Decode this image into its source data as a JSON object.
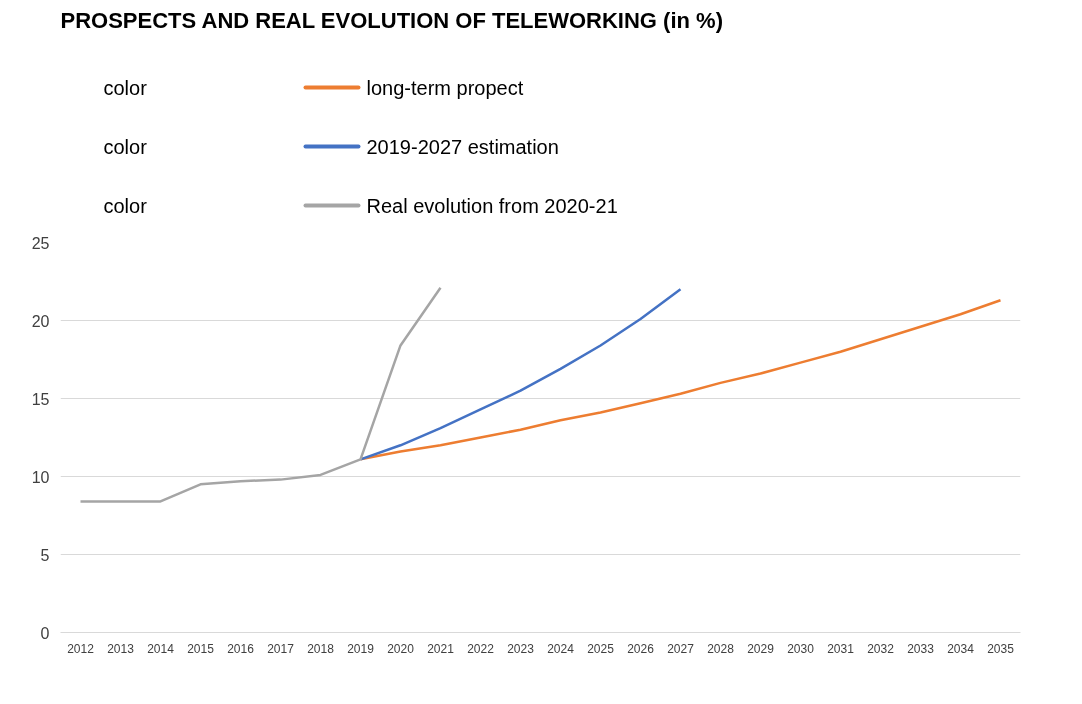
{
  "chart_data": {
    "type": "line",
    "title": "PROSPECTS AND REAL EVOLUTION OF TELEWORKING (in %)",
    "categories": [
      "2012",
      "2013",
      "2014",
      "2015",
      "2016",
      "2017",
      "2018",
      "2019",
      "2020",
      "2021",
      "2022",
      "2023",
      "2024",
      "2025",
      "2026",
      "2027",
      "2028",
      "2029",
      "2030",
      "2031",
      "2032",
      "2033",
      "2034",
      "2035"
    ],
    "series": [
      {
        "name": "long-term propect",
        "color": "#ed7d31",
        "values": [
          null,
          null,
          null,
          null,
          null,
          null,
          null,
          11.1,
          11.6,
          12.0,
          12.5,
          13.0,
          13.6,
          14.1,
          14.7,
          15.3,
          16.0,
          16.6,
          17.3,
          18.0,
          18.8,
          19.6,
          20.4,
          21.3
        ]
      },
      {
        "name": "2019-2027 estimation",
        "color": "#4472c4",
        "values": [
          null,
          null,
          null,
          null,
          null,
          null,
          null,
          11.1,
          12.0,
          13.1,
          14.3,
          15.5,
          16.9,
          18.4,
          20.1,
          22.0,
          null,
          null,
          null,
          null,
          null,
          null,
          null,
          null
        ]
      },
      {
        "name": "Real evolution from 2020-21",
        "color": "#a5a5a5",
        "values": [
          8.4,
          8.4,
          8.4,
          9.5,
          9.7,
          9.8,
          10.1,
          11.1,
          18.4,
          22.1,
          null,
          null,
          null,
          null,
          null,
          null,
          null,
          null,
          null,
          null,
          null,
          null,
          null,
          null
        ]
      }
    ],
    "ylim": [
      0,
      25
    ],
    "yticks": [
      0,
      5,
      10,
      15,
      20,
      25
    ],
    "grid": "y",
    "legend": "top",
    "marker": "none",
    "line_style": "solid",
    "annotations": [
      "color",
      "color",
      "color"
    ]
  }
}
